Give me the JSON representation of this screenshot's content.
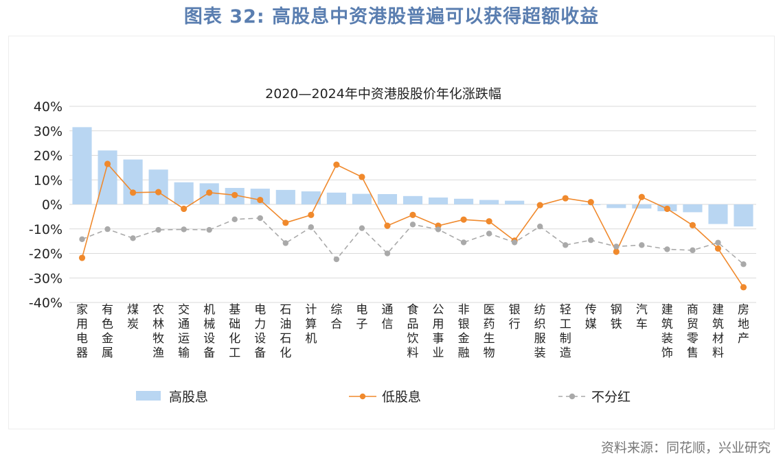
{
  "figure_title": "图表 32: 高股息中资港股普遍可以获得超额收益",
  "source_note": "资料来源：同花顺，兴业研究",
  "chart_data": {
    "type": "bar",
    "title": "2020—2024年中资港股股价年化涨跌幅",
    "xlabel": "",
    "ylabel": "",
    "ylim": [
      -40,
      40
    ],
    "yticks": [
      "40%",
      "30%",
      "20%",
      "10%",
      "0%",
      "-10%",
      "-20%",
      "-30%",
      "-40%"
    ],
    "grid": "horizontal",
    "legend_position": "bottom",
    "categories": [
      "家用电器",
      "有色金属",
      "煤炭",
      "农林牧渔",
      "交通运输",
      "机械设备",
      "基础化工",
      "电力设备",
      "石油石化",
      "计算机",
      "综合",
      "电子",
      "通信",
      "食品饮料",
      "公用事业",
      "非银金融",
      "医药生物",
      "银行",
      "纺织服装",
      "轻工制造",
      "传媒",
      "钢铁",
      "汽车",
      "建筑装饰",
      "商贸零售",
      "建筑材料",
      "房地产"
    ],
    "series": [
      {
        "name": "高股息",
        "kind": "bar",
        "color": "#b9d6f2",
        "values": [
          31.5,
          22,
          18.3,
          14.2,
          9,
          8.6,
          6.7,
          6.4,
          5.9,
          5.3,
          4.8,
          4.3,
          4.2,
          3.4,
          2.8,
          2.3,
          1.8,
          1.5,
          0,
          0,
          -0.3,
          -1.5,
          -1.7,
          -2.8,
          -3.2,
          -8,
          -9
        ]
      },
      {
        "name": "低股息",
        "kind": "line",
        "color": "#f0892c",
        "values": [
          -21.8,
          16.5,
          4.8,
          5,
          -1.8,
          4.8,
          3.8,
          1.8,
          -7.5,
          -4.3,
          16.2,
          11.2,
          -8.7,
          -4.3,
          -8.7,
          -6.2,
          -6.9,
          -14.8,
          -0.3,
          2.5,
          0.9,
          -19.3,
          3,
          -1.8,
          -8.5,
          -18,
          -33.8
        ]
      },
      {
        "name": "不分红",
        "kind": "dashed-line",
        "color": "#a9a9a9",
        "values": [
          -14.2,
          -10.1,
          -13.8,
          -10.4,
          -10.2,
          -10.4,
          -6.1,
          -5.6,
          -15.8,
          -9.3,
          -22.4,
          -9.7,
          -20,
          -8.2,
          -10.2,
          -15.5,
          -11.9,
          -15.5,
          -9,
          -16.6,
          -14.6,
          -17.2,
          -16.6,
          -18.3,
          -18.7,
          -15.6,
          -24.4
        ]
      }
    ]
  }
}
